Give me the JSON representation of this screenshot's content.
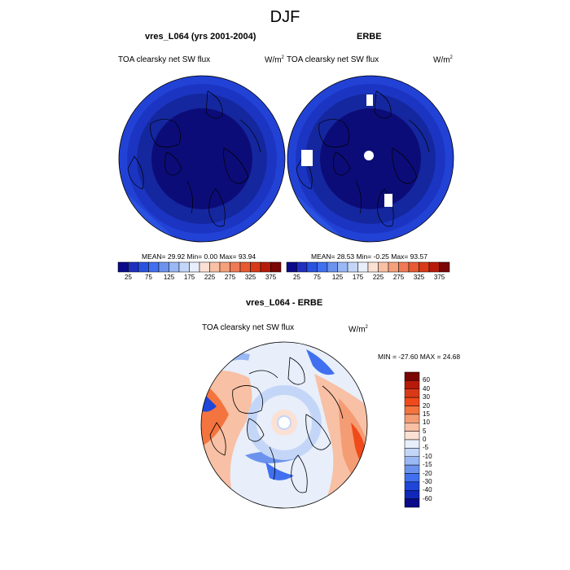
{
  "title": "DJF",
  "panels": [
    {
      "title": "vres_L064 (yrs 2001-2004)",
      "left_label": "TOA clearsky net SW flux",
      "unit": "W/m",
      "unit_sup": "2",
      "stats": "MEAN=  29.92  Min=   0.00  Max=  93.94"
    },
    {
      "title": "ERBE",
      "left_label": "TOA clearsky net SW flux",
      "unit": "W/m",
      "unit_sup": "2",
      "stats": "MEAN=  28.53  Min=  -0.25  Max=  93.57"
    },
    {
      "title": "vres_L064 - ERBE",
      "left_label": "TOA clearsky net SW flux",
      "unit": "W/m",
      "unit_sup": "2",
      "stats": "MIN = -27.60 MAX =  24.68"
    }
  ],
  "colorbar_top": {
    "tick_labels": [
      "25",
      "75",
      "125",
      "175",
      "225",
      "275",
      "325",
      "375"
    ],
    "colors": [
      "#0b0a8a",
      "#1f2fc0",
      "#2a52e0",
      "#4070f0",
      "#6b93ee",
      "#99b8f4",
      "#c4d6f8",
      "#e8eefa",
      "#fbe0d4",
      "#f8c0a4",
      "#f4a07a",
      "#f07a55",
      "#e85a32",
      "#d83a18",
      "#b81a0a",
      "#7a0606"
    ]
  },
  "colorbar_diff": {
    "tick_labels": [
      "60",
      "40",
      "30",
      "20",
      "15",
      "10",
      "5",
      "0",
      "-5",
      "-10",
      "-15",
      "-20",
      "-30",
      "-40",
      "-60"
    ],
    "colors": [
      "#7a0606",
      "#b81a0a",
      "#d83a18",
      "#f04a1a",
      "#f4743f",
      "#f49c74",
      "#f8c0a4",
      "#fbe0d4",
      "#e8eefa",
      "#c4d6f8",
      "#99b8f4",
      "#6b93ee",
      "#4070f0",
      "#1f46d8",
      "#1028b8",
      "#0b0a8a"
    ]
  }
}
